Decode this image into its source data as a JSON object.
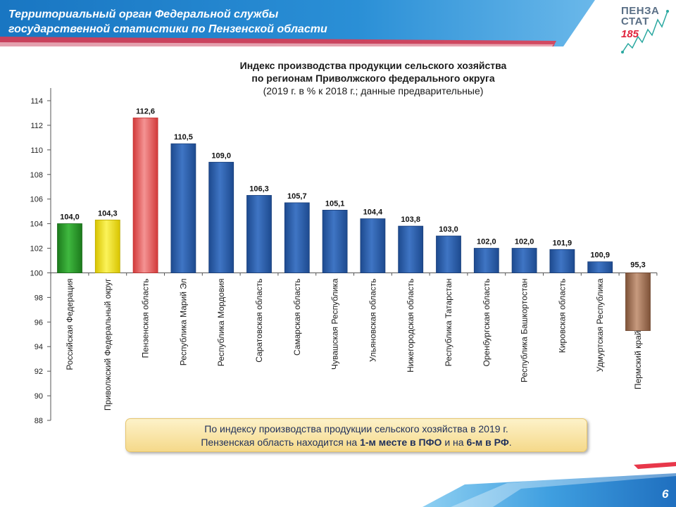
{
  "header": {
    "line1": "Территориальный орган Федеральной службы",
    "line2": "государственной  статистики по Пензенской области"
  },
  "logo": {
    "word1": "ПЕНЗА",
    "word2": "СТАТ",
    "number": "185"
  },
  "colors": {
    "banner_blue": "#1e7ec8",
    "bar_blue": "#2f5ea8",
    "bar_green": "#2e9a2e",
    "bar_yellow": "#ece21a",
    "bar_red": "#e65b5b",
    "bar_brown": "#a77a5e"
  },
  "callout": {
    "line1": "По индексу производства продукции сельского хозяйства в 2019 г.",
    "line2_before": "Пензенская область находится на ",
    "line2_bold1": "1-м месте в ПФО",
    "line2_mid": " и на ",
    "line2_bold2": "6-м в РФ",
    "line2_after": "."
  },
  "page_number": "6",
  "chart_data": {
    "type": "bar",
    "title_line1": "Индекс производства продукции сельского хозяйства",
    "title_line2": "по регионам Приволжского федерального округа",
    "subtitle": "(2019 г. в % к 2018 г.; данные предварительные)",
    "baseline": 100,
    "ylim": [
      88,
      114
    ],
    "yticks": [
      88,
      90,
      92,
      94,
      96,
      98,
      100,
      102,
      104,
      106,
      108,
      110,
      112,
      114
    ],
    "grid": false,
    "categories": [
      "Российская Федерация",
      "Приволжский Федеральный округ",
      "Пензенская область",
      "Республика Марий Эл",
      "Республика Мордовия",
      "Саратовская область",
      "Самарская область",
      "Чувашская Республика",
      "Ульяновская область",
      "Нижегородская область",
      "Республика Татарстан",
      "Оренбургская область",
      "Республика Башкортостан",
      "Кировская область",
      "Удмуртская Республика",
      "Пермский край"
    ],
    "values": [
      104.0,
      104.3,
      112.6,
      110.5,
      109.0,
      106.3,
      105.7,
      105.1,
      104.4,
      103.8,
      103.0,
      102.0,
      102.0,
      101.9,
      100.9,
      95.3
    ],
    "value_labels": [
      "104,0",
      "104,3",
      "112,6",
      "110,5",
      "109,0",
      "106,3",
      "105,7",
      "105,1",
      "104,4",
      "103,8",
      "103,0",
      "102,0",
      "102,0",
      "101,9",
      "100,9",
      "95,3"
    ],
    "bar_colors": [
      "green",
      "yellow",
      "red",
      "blue",
      "blue",
      "blue",
      "blue",
      "blue",
      "blue",
      "blue",
      "blue",
      "blue",
      "blue",
      "blue",
      "blue",
      "brown"
    ]
  }
}
